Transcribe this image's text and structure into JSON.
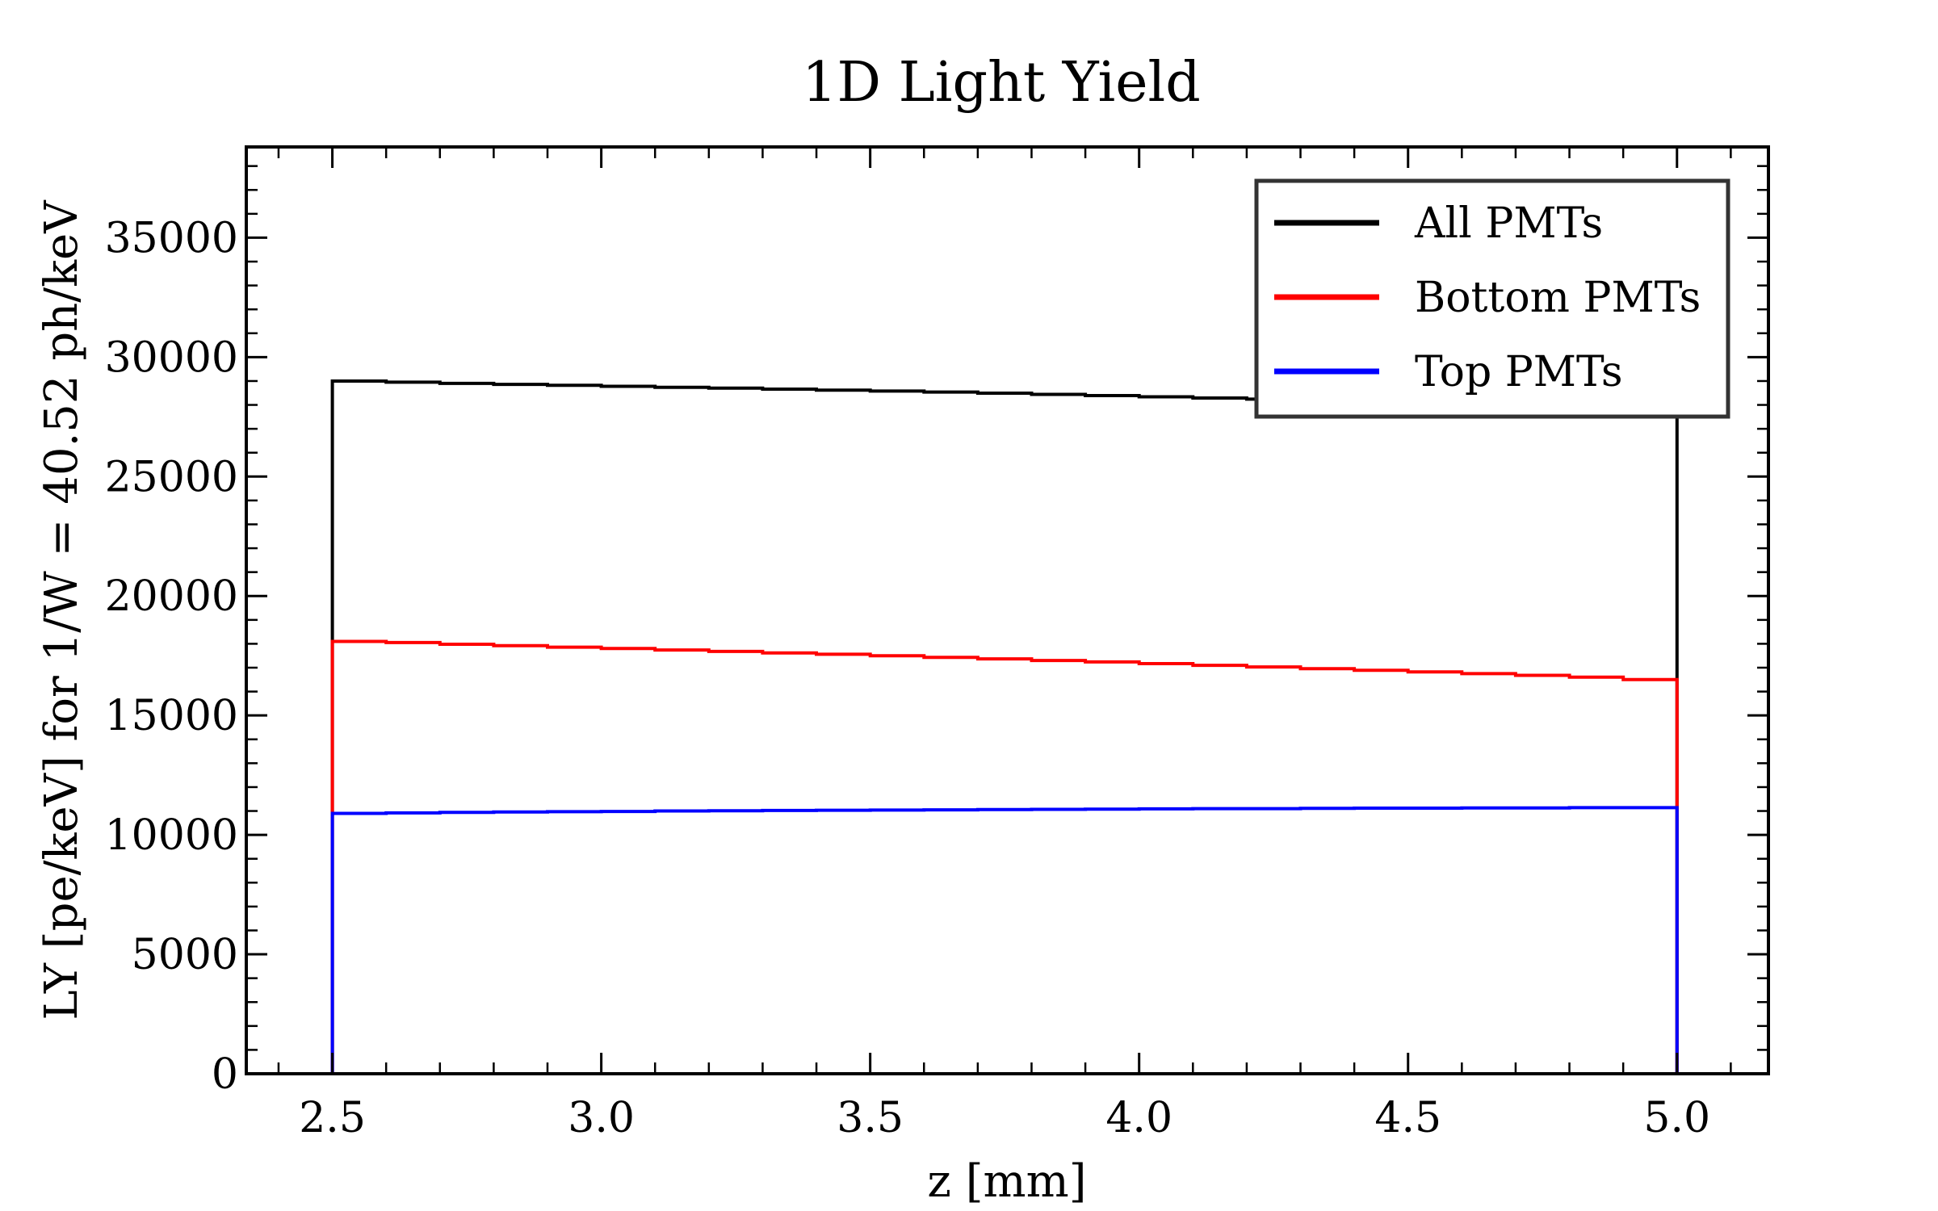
{
  "chart_data": {
    "type": "line",
    "title": "1D Light Yield",
    "xlabel": "z [mm]",
    "ylabel": "LY [pe/keV] for 1/W = 40.52 ph/keV",
    "xlim": [
      2.34,
      5.17
    ],
    "ylim": [
      0,
      38800
    ],
    "xticks": [
      "2.5",
      "3.0",
      "3.5",
      "4.0",
      "4.5",
      "5.0"
    ],
    "xtick_values": [
      2.5,
      3.0,
      3.5,
      4.0,
      4.5,
      5.0
    ],
    "yticks": [
      "0",
      "5000",
      "10000",
      "15000",
      "20000",
      "25000",
      "30000",
      "35000"
    ],
    "ytick_values": [
      0,
      5000,
      10000,
      15000,
      20000,
      25000,
      30000,
      35000
    ],
    "x_range": [
      2.5,
      5.0
    ],
    "grid": false,
    "legend_position": "top-right",
    "series": [
      {
        "name": "All PMTs",
        "color": "#000000",
        "values": [
          29000,
          28950,
          28900,
          28860,
          28820,
          28780,
          28740,
          28700,
          28660,
          28620,
          28580,
          28540,
          28490,
          28440,
          28390,
          28340,
          28290,
          28240,
          28180,
          28120,
          28060,
          28000,
          27940,
          27880,
          27800
        ]
      },
      {
        "name": "Bottom PMTs",
        "color": "#ff0000",
        "values": [
          18100,
          18050,
          17980,
          17920,
          17860,
          17800,
          17740,
          17680,
          17620,
          17560,
          17500,
          17430,
          17370,
          17300,
          17240,
          17170,
          17100,
          17030,
          16960,
          16890,
          16820,
          16750,
          16680,
          16600,
          16500
        ]
      },
      {
        "name": "Top PMTs",
        "color": "#0000ff",
        "values": [
          10900,
          10920,
          10940,
          10960,
          10970,
          10980,
          11000,
          11010,
          11020,
          11030,
          11040,
          11050,
          11060,
          11070,
          11080,
          11090,
          11100,
          11100,
          11110,
          11120,
          11120,
          11130,
          11130,
          11140,
          11140
        ]
      }
    ]
  }
}
